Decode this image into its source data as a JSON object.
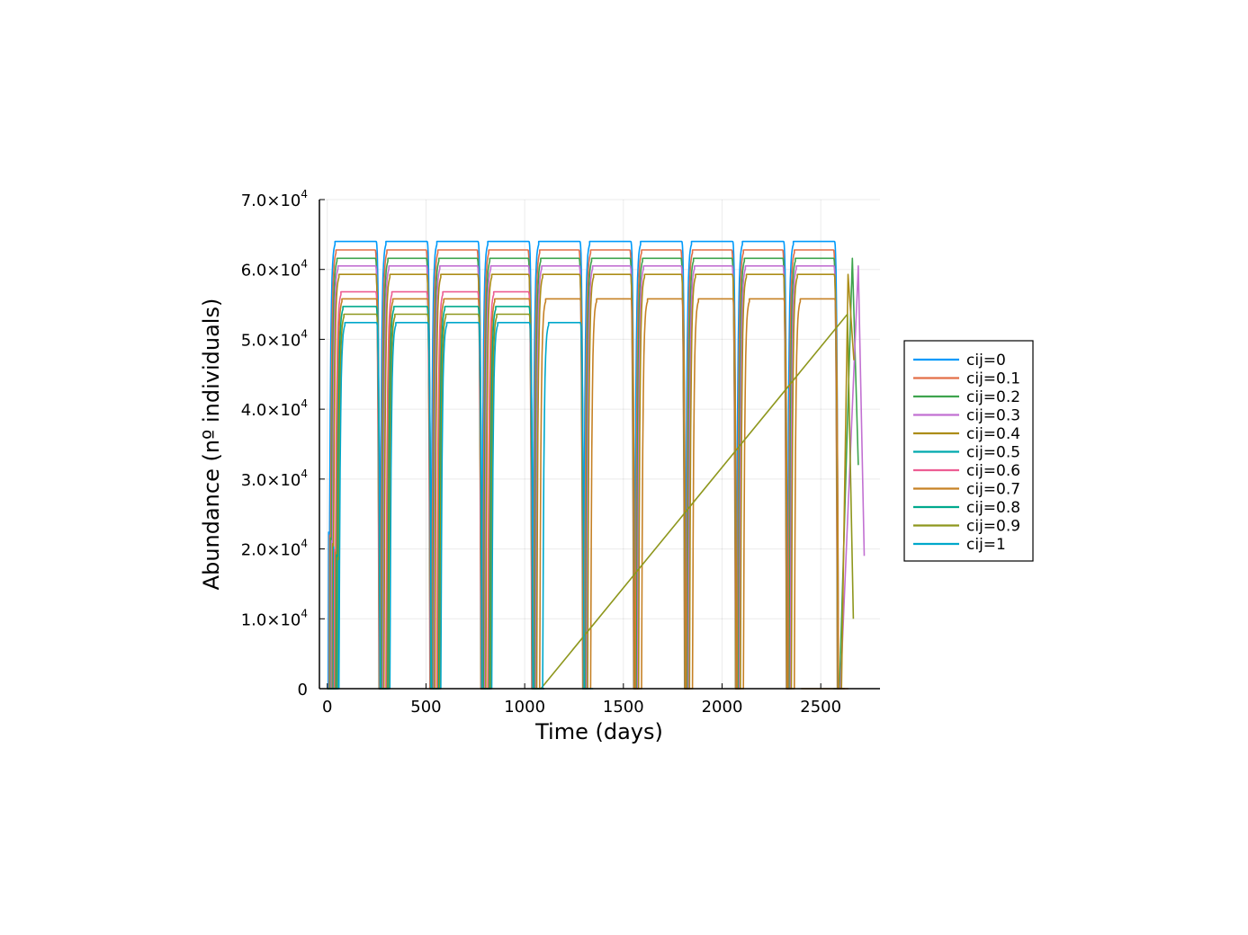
{
  "chart_data": {
    "type": "line",
    "title": "",
    "xlabel": "Time (days)",
    "ylabel": "Abundance (nº individuals)",
    "xlim": [
      -40,
      2800
    ],
    "ylim": [
      0,
      70000
    ],
    "grid": true,
    "legend_position": "outside-right",
    "x_ticks": [
      {
        "value": 0,
        "label": "0"
      },
      {
        "value": 500,
        "label": "500"
      },
      {
        "value": 1000,
        "label": "1000"
      },
      {
        "value": 1500,
        "label": "1500"
      },
      {
        "value": 2000,
        "label": "2000"
      },
      {
        "value": 2500,
        "label": "2500"
      }
    ],
    "y_ticks": [
      {
        "value": 0,
        "label": "0",
        "exp": ""
      },
      {
        "value": 10000,
        "label": "1.0×10",
        "exp": "4"
      },
      {
        "value": 20000,
        "label": "2.0×10",
        "exp": "4"
      },
      {
        "value": 30000,
        "label": "3.0×10",
        "exp": "4"
      },
      {
        "value": 40000,
        "label": "4.0×10",
        "exp": "4"
      },
      {
        "value": 50000,
        "label": "5.0×10",
        "exp": "4"
      },
      {
        "value": 60000,
        "label": "6.0×10",
        "exp": "4"
      },
      {
        "value": 70000,
        "label": "7.0×10",
        "exp": "4"
      }
    ],
    "series": [
      {
        "name": "cij=0",
        "color": "#009AFA",
        "onset": 5,
        "peak": 64000,
        "period": 258,
        "up": 1.0,
        "dropT": 258,
        "cycles": 10,
        "end": 2565
      },
      {
        "name": "cij=0.1",
        "color": "#E36F47",
        "onset": 10,
        "peak": 62800,
        "period": 258,
        "up": 0.96,
        "dropT": 248,
        "cycles": 10,
        "end": 2640
      },
      {
        "name": "cij=0.2",
        "color": "#3EA44E",
        "onset": 15,
        "peak": 61600,
        "period": 258,
        "up": 0.955,
        "dropT": 244,
        "cycles": 10,
        "end": 2690,
        "endValue": 32000
      },
      {
        "name": "cij=0.3",
        "color": "#C271D2",
        "onset": 20,
        "peak": 60500,
        "period": 258,
        "up": 0.95,
        "dropT": 240,
        "cycles": 10,
        "end": 2720,
        "endValue": 19000
      },
      {
        "name": "cij=0.4",
        "color": "#AC8D18",
        "onset": 25,
        "peak": 59300,
        "period": 258,
        "up": 0.94,
        "dropT": 236,
        "cycles": 10,
        "end": 2668,
        "endValue": 47000
      },
      {
        "name": "cij=0.5",
        "color": "#00A9AD",
        "onset": 30,
        "peak": 58000,
        "period": 258,
        "up": 0.93,
        "dropT": 230,
        "cycles": 0,
        "end": 30
      },
      {
        "name": "cij=0.6",
        "color": "#ED5E93",
        "onset": 35,
        "peak": 56800,
        "period": 258,
        "up": 0.92,
        "dropT": 226,
        "cycles": 4,
        "end": 1100
      },
      {
        "name": "cij=0.7",
        "color": "#C68125",
        "onset": 40,
        "peak": 55800,
        "period": 258,
        "up": 0.9,
        "dropT": 224,
        "cycles": 10,
        "end": 2400
      },
      {
        "name": "cij=0.8",
        "color": "#00A98D",
        "onset": 45,
        "peak": 54700,
        "period": 258,
        "up": 0.88,
        "dropT": 218,
        "cycles": 4,
        "end": 1100
      },
      {
        "name": "cij=0.9",
        "color": "#8E971D",
        "onset": 50,
        "peak": 53600,
        "period": 258,
        "up": 0.87,
        "dropT": 214,
        "cycles": 4,
        "end": 2665,
        "endValue": 10000
      },
      {
        "name": "cij=1",
        "color": "#00A8CB",
        "onset": 55,
        "peak": 52400,
        "period": 258,
        "up": 0.86,
        "dropT": 210,
        "cycles": 5,
        "end": 1290
      }
    ]
  }
}
